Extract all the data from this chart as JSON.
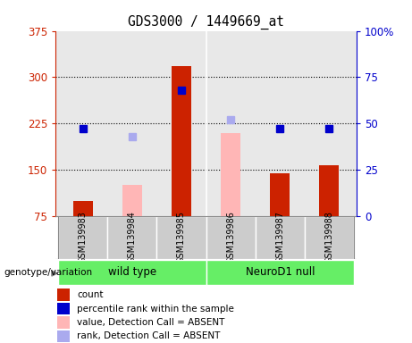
{
  "title": "GDS3000 / 1449669_at",
  "samples": [
    "GSM139983",
    "GSM139984",
    "GSM139985",
    "GSM139986",
    "GSM139987",
    "GSM139988"
  ],
  "left_ylim": [
    75,
    375
  ],
  "right_ylim": [
    0,
    100
  ],
  "left_yticks": [
    75,
    150,
    225,
    300,
    375
  ],
  "right_yticks": [
    0,
    25,
    50,
    75,
    100
  ],
  "left_ycolor": "#cc2200",
  "right_ycolor": "#0000cc",
  "bars_red": {
    "0": 100,
    "2": 318,
    "4": 145,
    "5": 157
  },
  "bars_pink": {
    "1": 125,
    "3": 210
  },
  "dots_blue": {
    "0": 47,
    "2": 68,
    "4": 47,
    "5": 47
  },
  "dots_lightblue": {
    "1": 43,
    "3": 52
  },
  "bar_width": 0.4,
  "red_color": "#cc2200",
  "pink_color": "#ffb6b6",
  "blue_color": "#0000cc",
  "lightblue_color": "#aaaaee",
  "bg_plot": "#e8e8e8",
  "bg_sample": "#cccccc",
  "group_color_wt": "#66ee66",
  "group_color_nd": "#66ee66",
  "grid_dotted_at": [
    150,
    225,
    300
  ],
  "wt_label": "wild type",
  "nd_label": "NeuroD1 null",
  "genotype_label": "genotype/variation",
  "legend_items": [
    {
      "label": "count",
      "color": "#cc2200"
    },
    {
      "label": "percentile rank within the sample",
      "color": "#0000cc"
    },
    {
      "label": "value, Detection Call = ABSENT",
      "color": "#ffb6b6"
    },
    {
      "label": "rank, Detection Call = ABSENT",
      "color": "#aaaaee"
    }
  ]
}
